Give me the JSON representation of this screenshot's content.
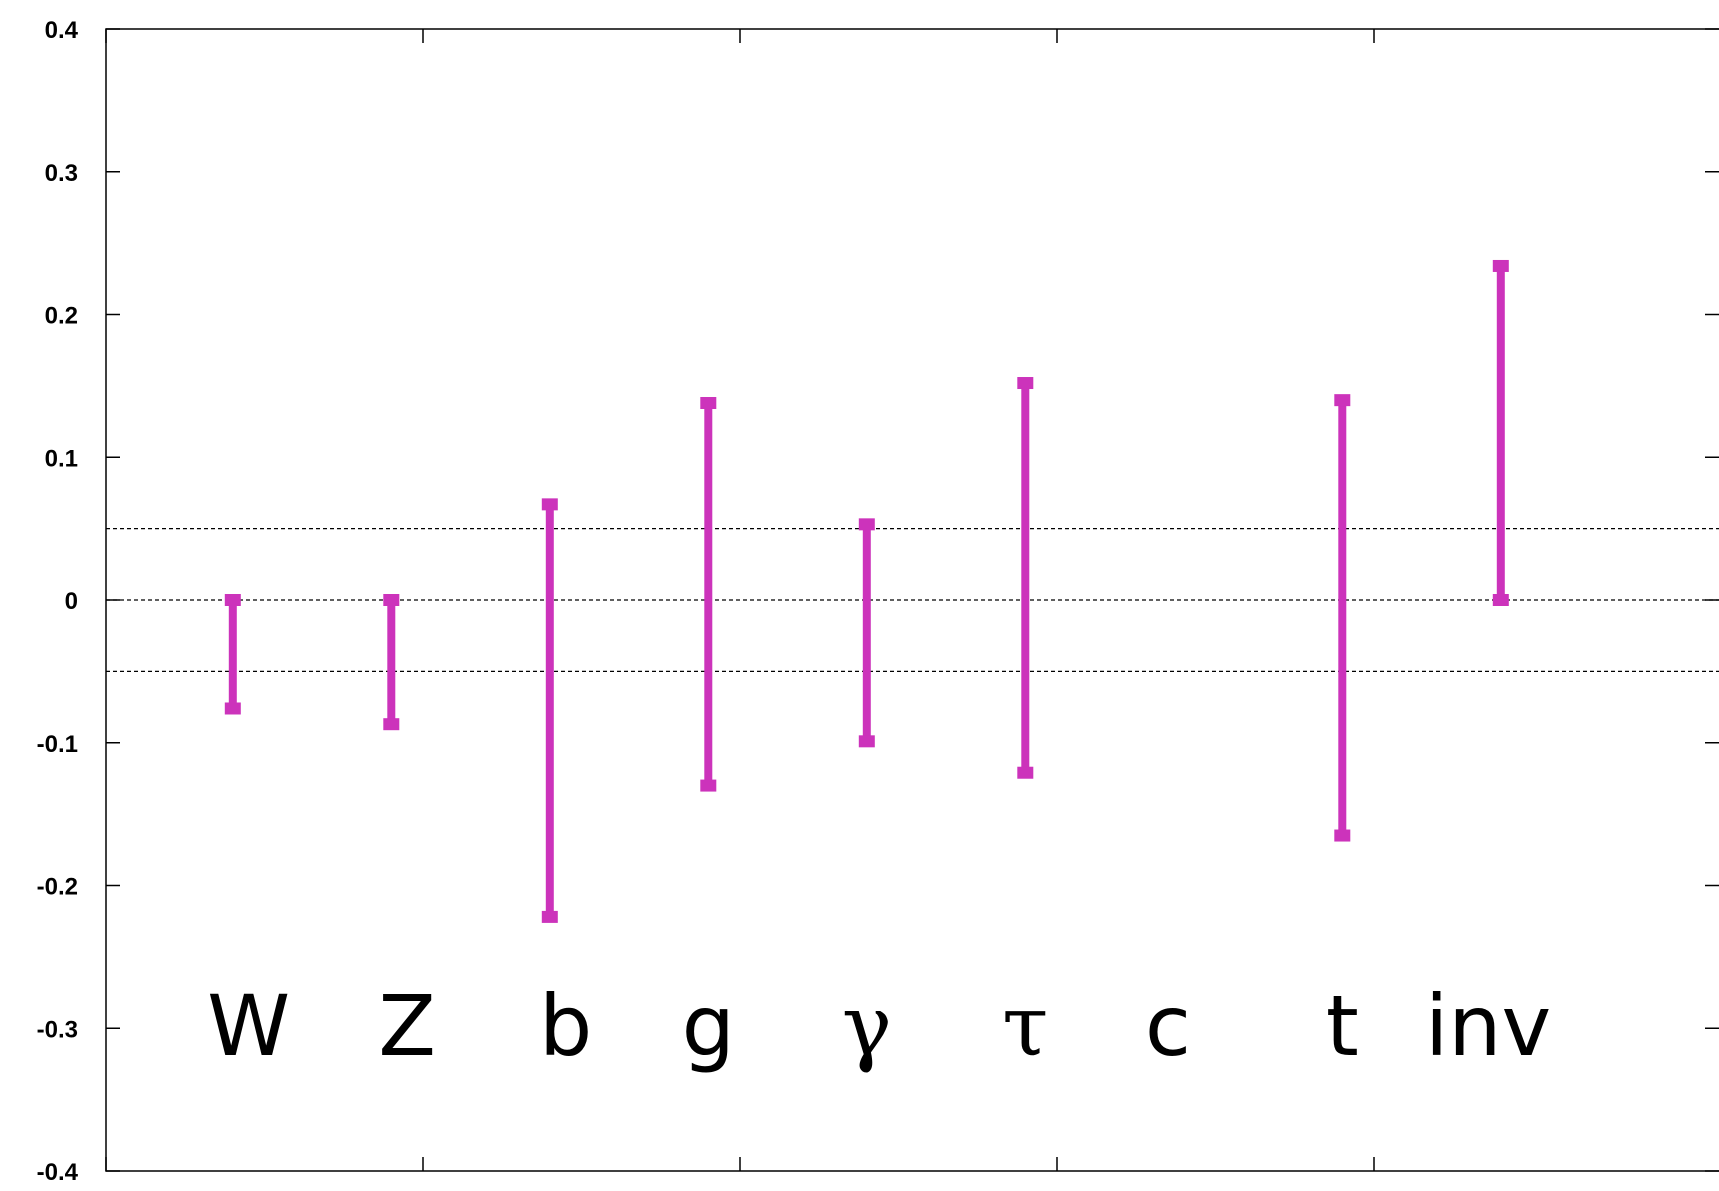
{
  "chart_data": {
    "type": "errorbar",
    "title": "",
    "xlabel": "",
    "ylabel": "",
    "ylim": [
      -0.4,
      0.4
    ],
    "yticks": [
      "0.4",
      "0.3",
      "0.2",
      "0.1",
      "0",
      "-0.1",
      "-0.2",
      "-0.3",
      "-0.4"
    ],
    "ytick_values": [
      0.4,
      0.3,
      0.2,
      0.1,
      0,
      -0.1,
      -0.2,
      -0.3,
      -0.4
    ],
    "xlim": [
      0,
      4
    ],
    "xtick_values": [
      0,
      1,
      2,
      3,
      4
    ],
    "grid": false,
    "reference_lines": [
      0.05,
      0,
      -0.05
    ],
    "bar_color": "#cc33bb",
    "categories": [
      "W",
      "Z",
      "b",
      "g",
      "γ",
      "τ",
      "c",
      "t",
      "inv"
    ],
    "intervals": [
      {
        "label": "W",
        "x": 0.4,
        "low": -0.076,
        "high": 0.0
      },
      {
        "label": "Z",
        "x": 0.9,
        "low": -0.087,
        "high": 0.0
      },
      {
        "label": "b",
        "x": 1.4,
        "low": -0.222,
        "high": 0.067
      },
      {
        "label": "g",
        "x": 1.9,
        "low": -0.13,
        "high": 0.138
      },
      {
        "label": "γ",
        "x": 2.4,
        "low": -0.099,
        "high": 0.053
      },
      {
        "label": "τ",
        "x": 2.9,
        "low": -0.121,
        "high": 0.152
      },
      {
        "label": "t",
        "x": 3.9,
        "low": -0.165,
        "high": 0.14
      },
      {
        "label": "inv",
        "x": 4.4,
        "low": 0.0,
        "high": 0.234
      }
    ]
  }
}
